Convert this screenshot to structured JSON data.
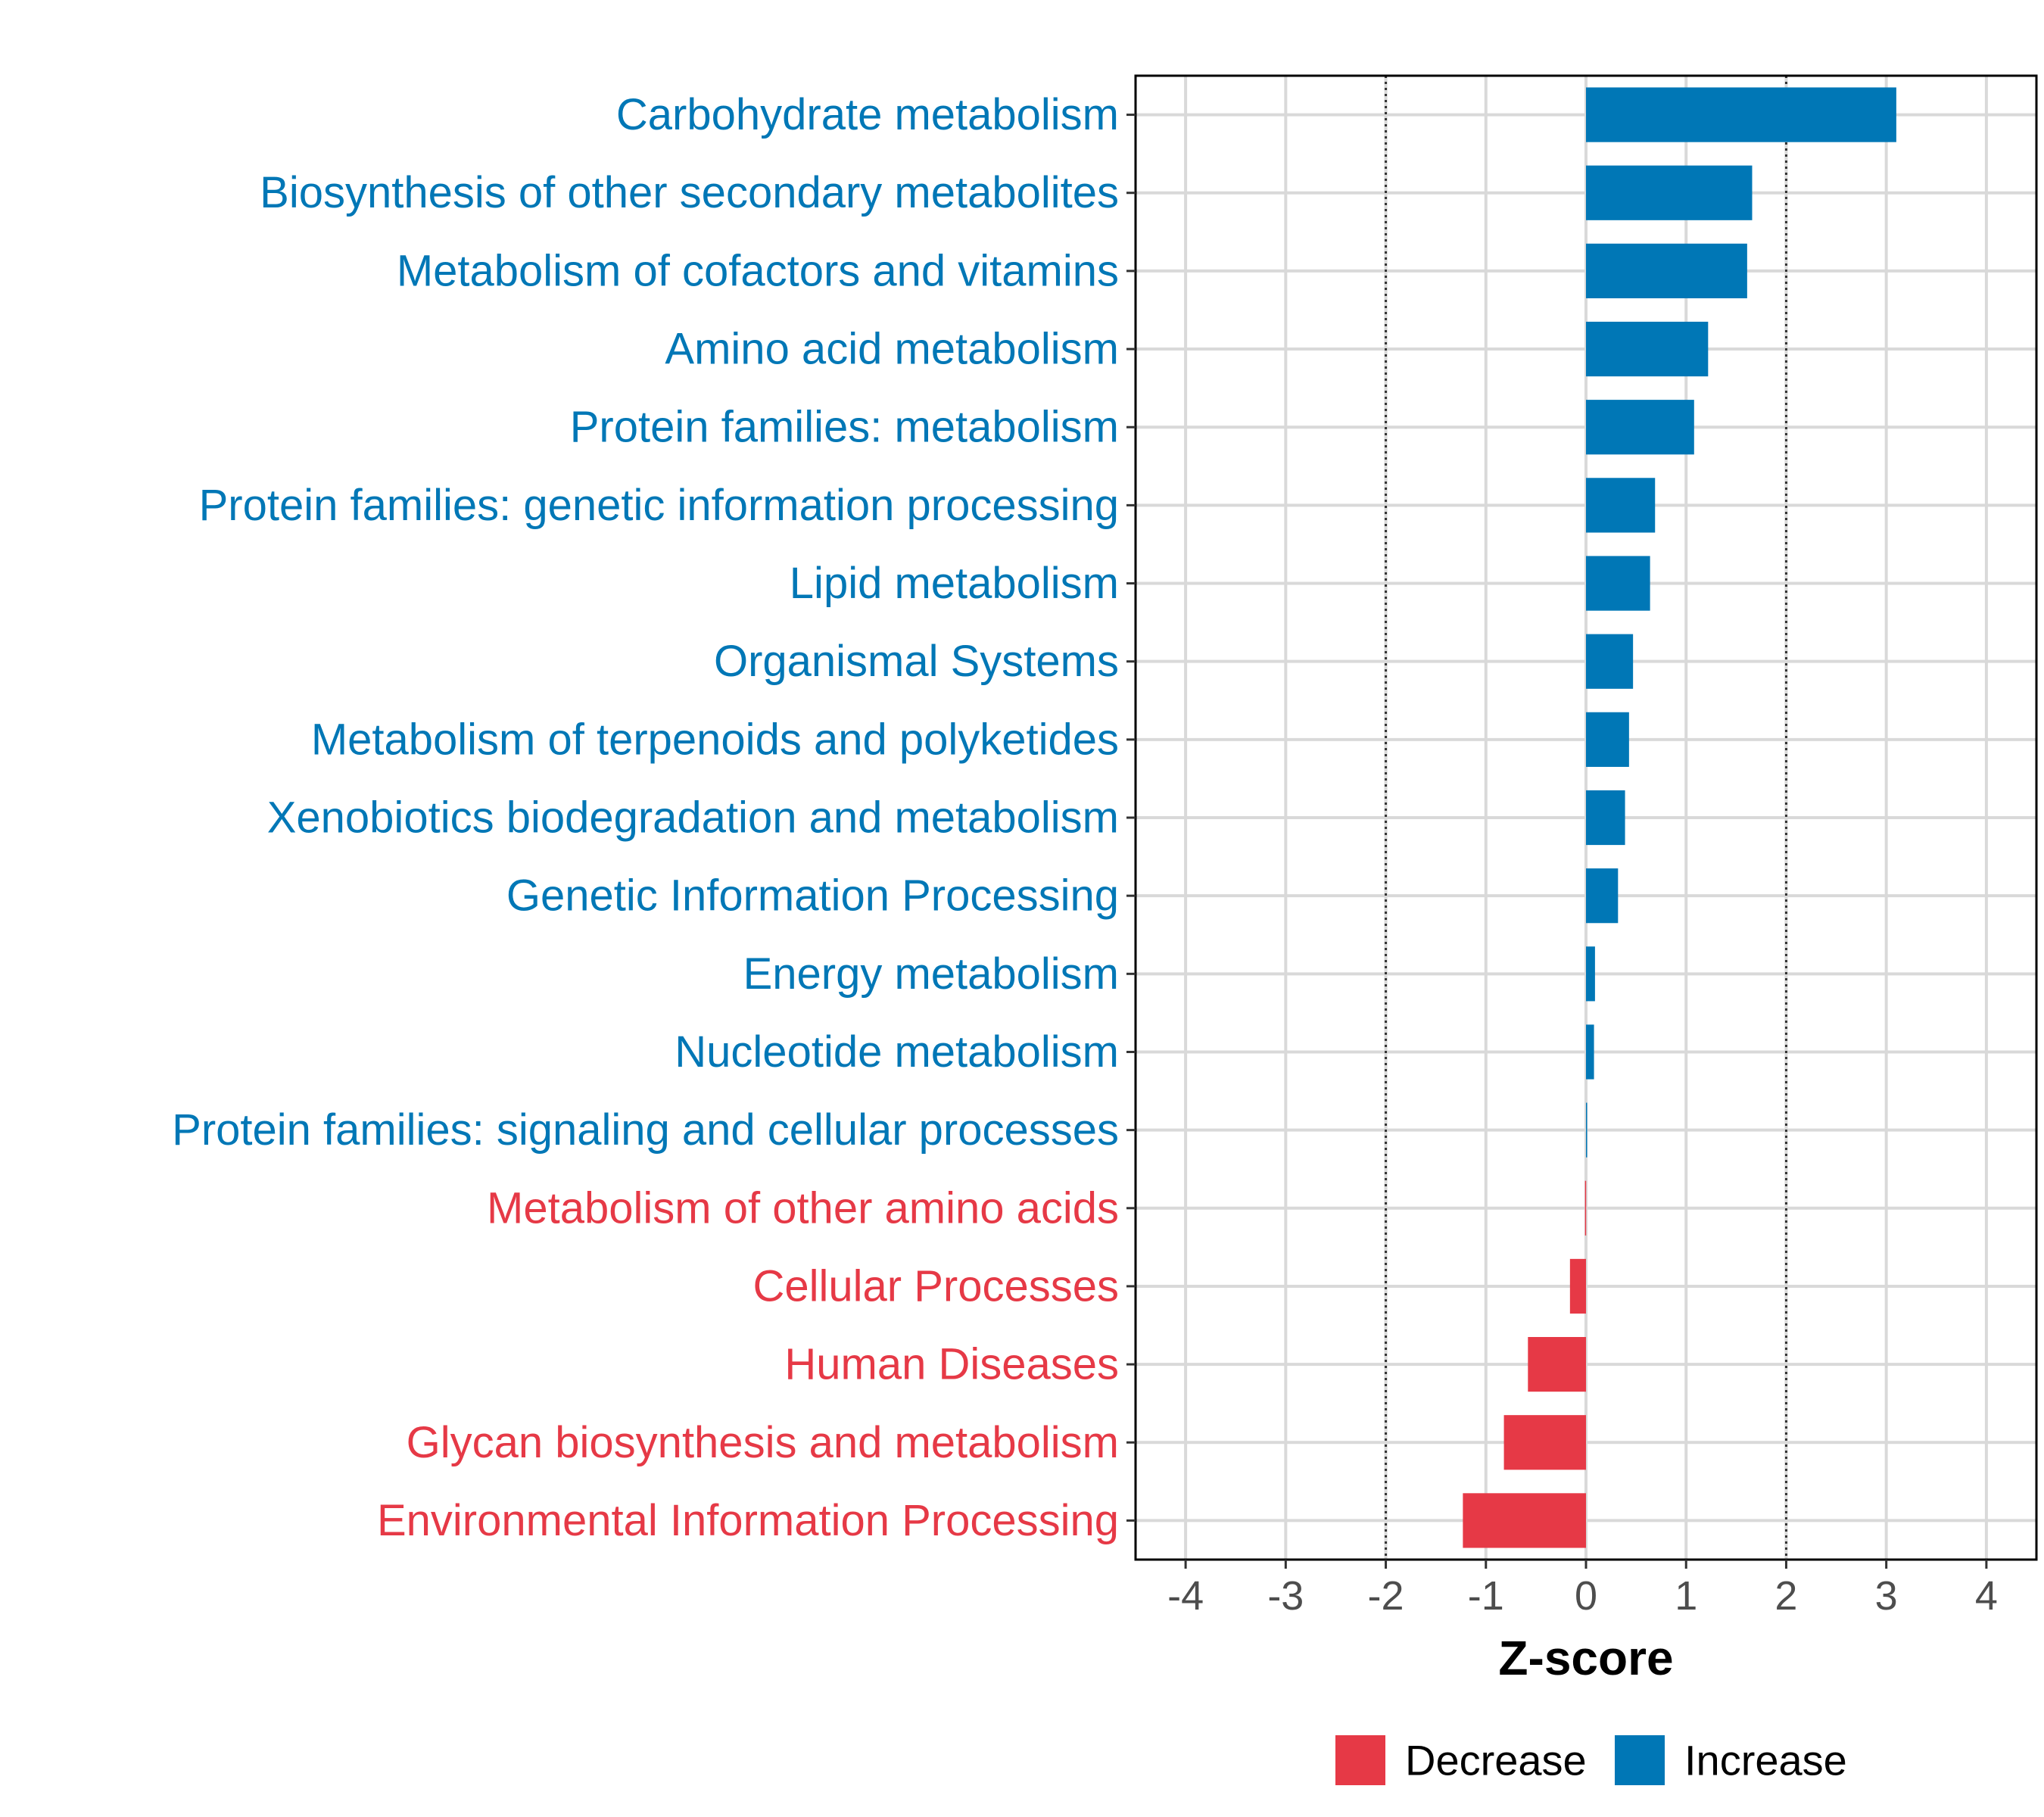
{
  "chart_data": {
    "type": "bar",
    "orientation": "horizontal",
    "title": "",
    "xlabel": "Z-score",
    "ylabel": "",
    "xlim": [
      -4.5,
      4.5
    ],
    "x_ticks": [
      -4,
      -3,
      -2,
      -1,
      0,
      1,
      2,
      3,
      4
    ],
    "x_tick_labels": [
      "-4",
      "-3",
      "-2",
      "-1",
      "0",
      "1",
      "2",
      "3",
      "4"
    ],
    "threshold_lines": [
      -2,
      2
    ],
    "grid": true,
    "colors": {
      "Decrease": "#E63946",
      "Increase": "#0077B6"
    },
    "categories": [
      "Carbohydrate metabolism",
      "Biosynthesis of other secondary metabolites",
      "Metabolism of cofactors and vitamins",
      "Amino acid metabolism",
      "Protein families: metabolism",
      "Protein families: genetic information processing",
      "Lipid metabolism",
      "Organismal Systems",
      "Metabolism of terpenoids and polyketides",
      "Xenobiotics biodegradation and metabolism",
      "Genetic Information Processing",
      "Energy metabolism",
      "Nucleotide metabolism",
      "Protein families: signaling and cellular processes",
      "Metabolism of other amino acids",
      "Cellular Processes",
      "Human Diseases",
      "Glycan biosynthesis and metabolism",
      "Environmental Information Processing"
    ],
    "values": [
      3.1,
      1.66,
      1.61,
      1.22,
      1.08,
      0.69,
      0.64,
      0.47,
      0.43,
      0.39,
      0.32,
      0.09,
      0.08,
      0.01,
      -0.01,
      -0.16,
      -0.58,
      -0.82,
      -1.23
    ],
    "groups": [
      "Increase",
      "Increase",
      "Increase",
      "Increase",
      "Increase",
      "Increase",
      "Increase",
      "Increase",
      "Increase",
      "Increase",
      "Increase",
      "Increase",
      "Increase",
      "Increase",
      "Decrease",
      "Decrease",
      "Decrease",
      "Decrease",
      "Decrease"
    ],
    "legend": {
      "position": "bottom",
      "entries": [
        "Decrease",
        "Increase"
      ]
    }
  }
}
